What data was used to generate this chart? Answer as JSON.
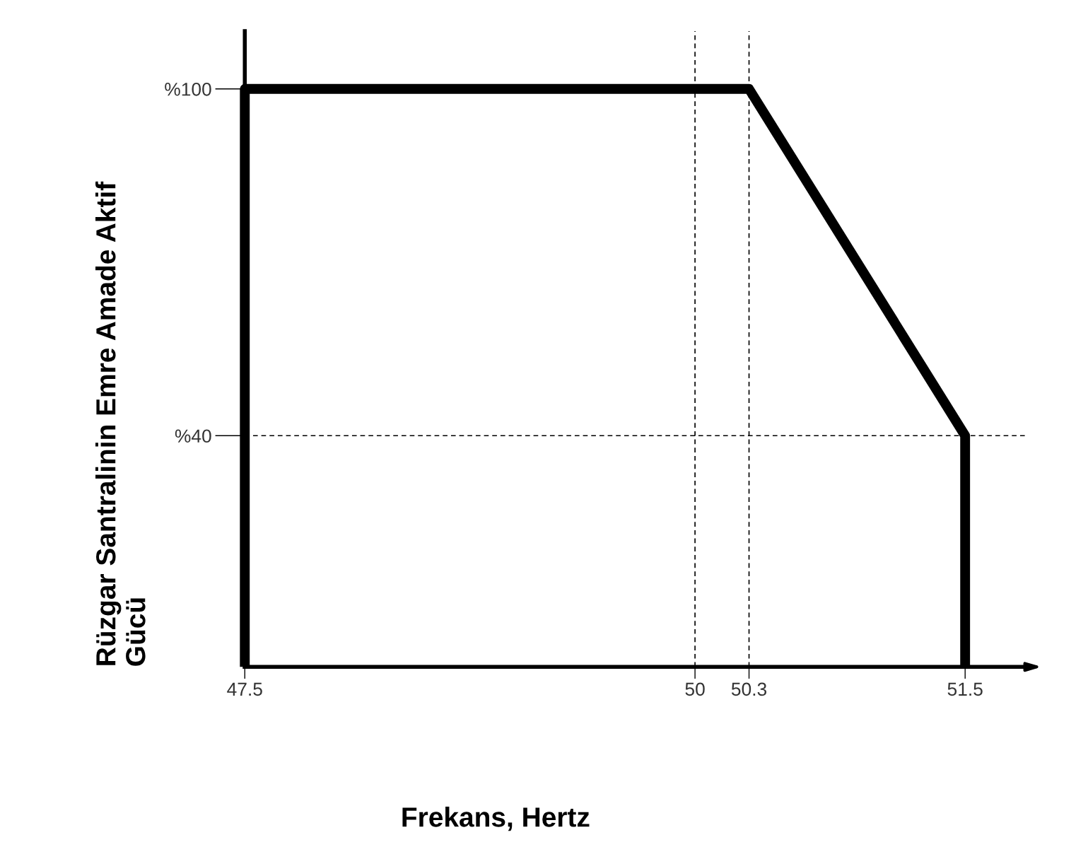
{
  "chart_data": {
    "type": "line",
    "xlabel": "Frekans, Hertz",
    "ylabel": "Rüzgar Santralinin Emre Amade Aktif\nGücü",
    "series": [
      {
        "color": "#000000",
        "x": [
          47.5,
          47.5,
          50.3,
          51.5,
          51.5
        ],
        "values": [
          0,
          100,
          100,
          40,
          0
        ]
      }
    ],
    "xlim": [
      47.5,
      51.85
    ],
    "xticks": [
      47.5,
      50,
      50.3,
      51.5
    ],
    "ylim": [
      0,
      110
    ],
    "yticks": [
      {
        "value": 40,
        "label": "%40"
      },
      {
        "value": 100,
        "label": "%100"
      }
    ],
    "ref_lines": [
      {
        "axis": "x",
        "value": 50,
        "label": null,
        "color": "#000000",
        "line_style": "dashed"
      },
      {
        "axis": "x",
        "value": 50.3,
        "label": null,
        "color": "#000000",
        "line_style": "dashed"
      },
      {
        "axis": "y",
        "value": 40,
        "label": null,
        "color": "#000000",
        "line_style": "dashed"
      }
    ],
    "grid": false,
    "legend": false,
    "marker": "none",
    "line_style": "solid"
  }
}
